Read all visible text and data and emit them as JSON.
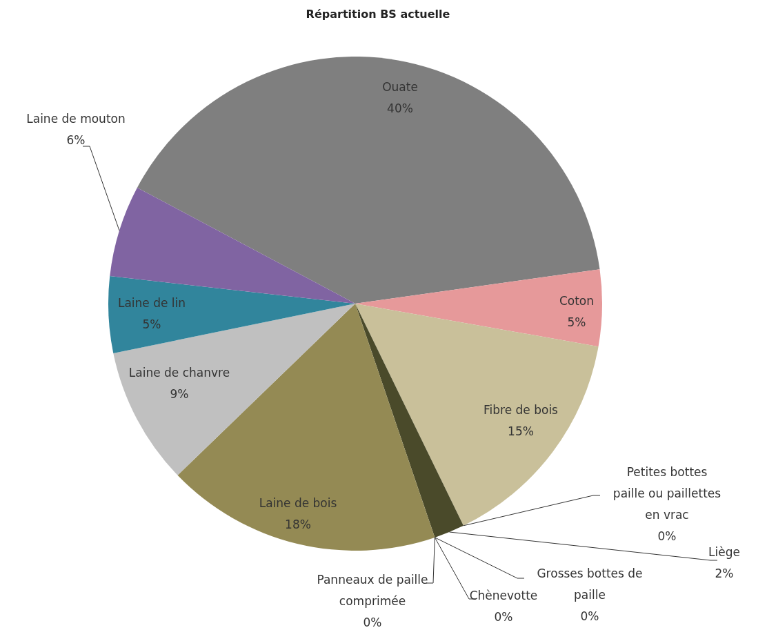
{
  "chart_data": {
    "type": "pie",
    "title": "Répartition BS actuelle",
    "categories": [
      "Ouate",
      "Coton",
      "Fibre de bois",
      "Petites bottes paille ou paillettes en vrac",
      "Liège",
      "Grosses bottes de paille",
      "Chènevotte",
      "Panneaux de paille comprimée",
      "Laine de bois",
      "Laine de chanvre",
      "Laine de lin",
      "Laine de mouton"
    ],
    "values": [
      40,
      5,
      15,
      0,
      2,
      0,
      0,
      0,
      18,
      9,
      5,
      6
    ],
    "value_labels": [
      "40%",
      "5%",
      "15%",
      "0%",
      "2%",
      "0%",
      "0%",
      "0%",
      "18%",
      "9%",
      "5%",
      "6%"
    ],
    "colors": [
      "#7f7f7f",
      "#e6999a",
      "#c9c09a",
      "#7a7a3a",
      "#4a4a2a",
      "#9a9a40",
      "#d8d050",
      "#f0e030",
      "#948a54",
      "#c0c0c0",
      "#31859c",
      "#8064a2"
    ]
  }
}
